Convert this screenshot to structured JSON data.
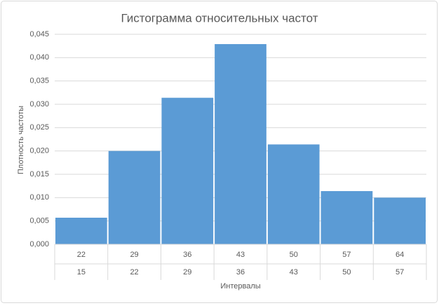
{
  "chart_data": {
    "type": "histogram",
    "title": "Гистограмма относительных частот",
    "x_label": "Интервалы",
    "y_label": "Плотность частоты",
    "bins": [
      15,
      22,
      29,
      36,
      43,
      50,
      57,
      64
    ],
    "values": [
      0.0057,
      0.02,
      0.0314,
      0.0429,
      0.0214,
      0.0114,
      0.01
    ],
    "color": "#5b9bd5",
    "ylim": [
      0,
      0.045
    ],
    "yticks": [
      {
        "value": 0,
        "label": "0,000"
      },
      {
        "value": 0.005,
        "label": "0,005"
      },
      {
        "value": 0.01,
        "label": "0,010"
      },
      {
        "value": 0.015,
        "label": "0,015"
      },
      {
        "value": 0.02,
        "label": "0,020"
      },
      {
        "value": 0.025,
        "label": "0,025"
      },
      {
        "value": 0.03,
        "label": "0,030"
      },
      {
        "value": 0.035,
        "label": "0,035"
      },
      {
        "value": 0.04,
        "label": "0,040"
      },
      {
        "value": 0.045,
        "label": "0,045"
      }
    ],
    "grid": true
  }
}
